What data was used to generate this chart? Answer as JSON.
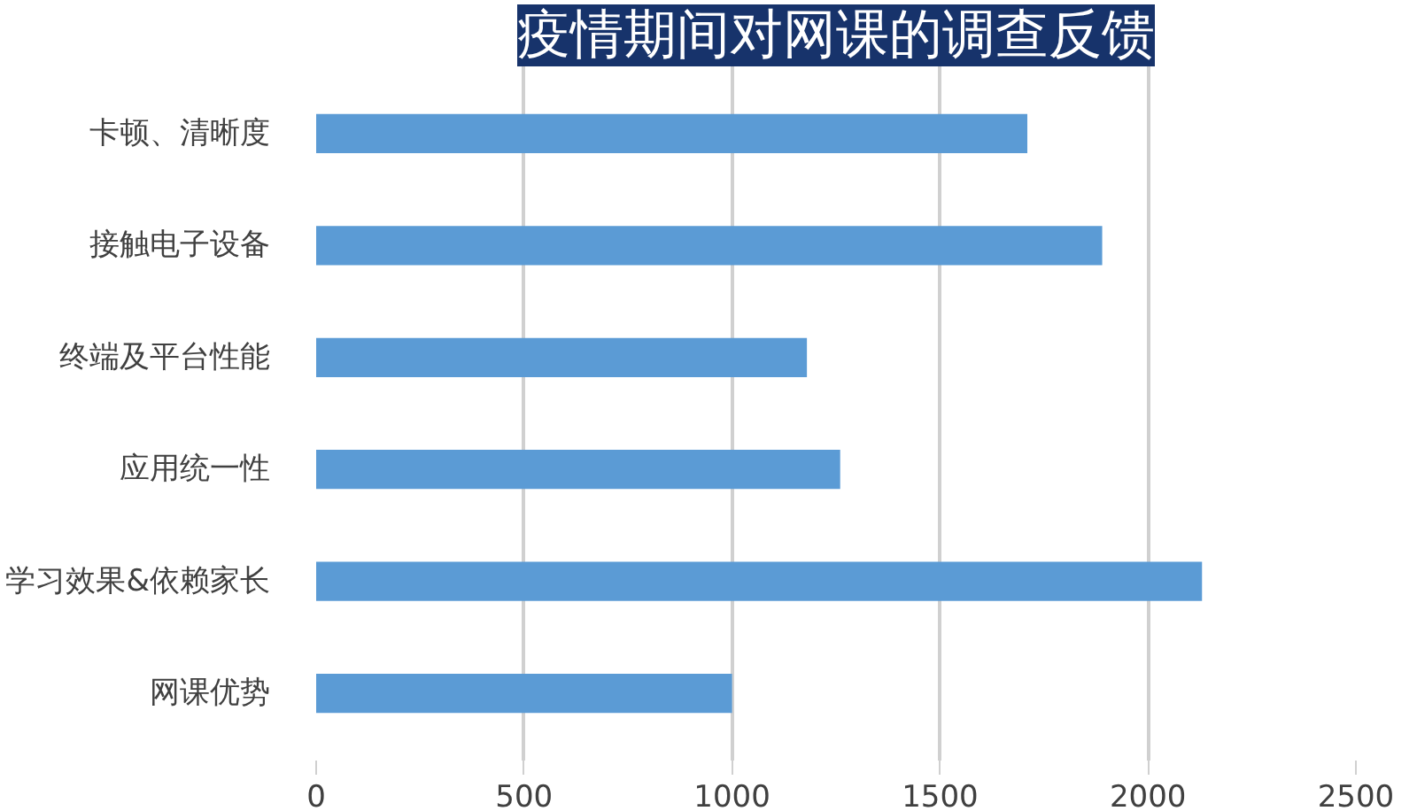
{
  "chart_data": {
    "type": "bar",
    "orientation": "horizontal",
    "title": "疫情期间对网课的调查反馈",
    "categories": [
      "卡顿、清晰度",
      "接触电子设备",
      "终端及平台性能",
      "应用统一性",
      "学习效果&依赖家长",
      "网课优势"
    ],
    "values": [
      1710,
      1890,
      1180,
      1260,
      2130,
      1000
    ],
    "color": "#5b9bd5",
    "xlim": [
      0,
      2500
    ],
    "xticks": [
      0,
      500,
      1000,
      1500,
      2000,
      2500
    ],
    "grid": "x"
  }
}
